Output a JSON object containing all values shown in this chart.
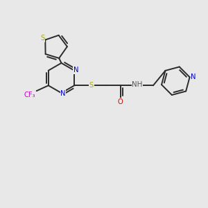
{
  "bg_color": "#e8e8e8",
  "bond_color": "#2a2a2a",
  "N_color": "#0000cc",
  "S_color": "#aaaa00",
  "O_color": "#cc0000",
  "F_color": "#cc00cc",
  "H_color": "#555555",
  "lw": 1.4,
  "fs": 7.2,
  "xlim": [
    0,
    10
  ],
  "ylim": [
    0,
    10
  ]
}
